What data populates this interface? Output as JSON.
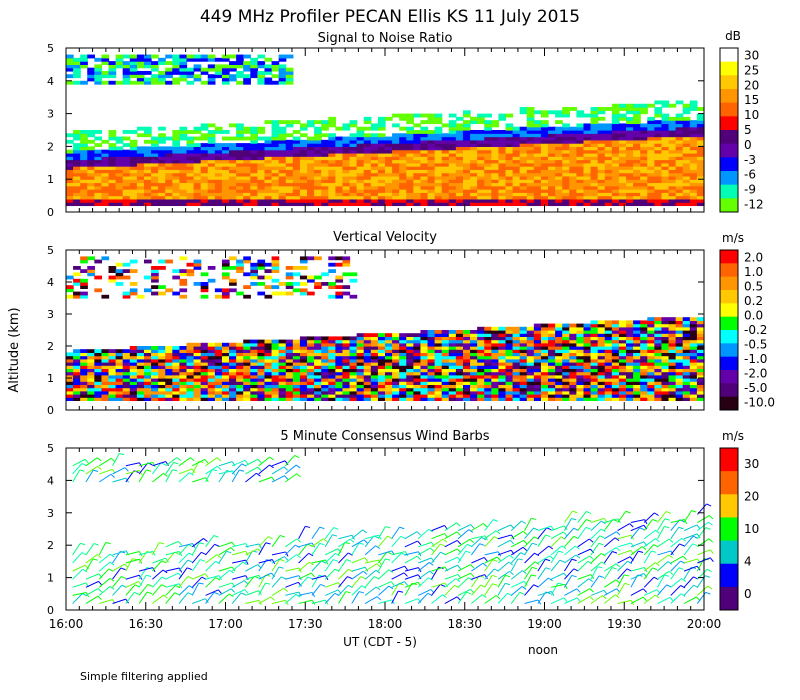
{
  "title": "449 MHz Profiler PECAN Ellis KS 11 July 2015",
  "ylabel": "Altitude (km)",
  "xlabel": "UT  (CDT - 5)",
  "noon_label": "noon",
  "footnote": "Simple filtering applied",
  "chart_data": [
    {
      "type": "heatmap",
      "title": "Signal to Noise Ratio",
      "unit": "dB",
      "ylim": [
        0,
        5
      ],
      "yticks": [
        "0",
        "1",
        "2",
        "3",
        "4",
        "5"
      ],
      "xlim": [
        16.0,
        20.0
      ],
      "xticks": [
        "16:00",
        "16:30",
        "17:00",
        "17:30",
        "18:00",
        "18:30",
        "19:00",
        "19:30",
        "20:00"
      ],
      "colorbar": {
        "labels": [
          "30",
          "25",
          "20",
          "15",
          "10",
          "5",
          "0",
          "-3",
          "-6",
          "-9",
          "-12"
        ],
        "colors": [
          "#ffffff",
          "#ffff00",
          "#ffc800",
          "#ff9600",
          "#ff6400",
          "#ff0000",
          "#500078",
          "#6400aa",
          "#0000ff",
          "#0096ff",
          "#00ffb4",
          "#64ff00"
        ]
      }
    },
    {
      "type": "heatmap",
      "title": "Vertical Velocity",
      "unit": "m/s",
      "ylim": [
        0,
        5
      ],
      "yticks": [
        "0",
        "1",
        "2",
        "3",
        "4",
        "5"
      ],
      "xlim": [
        16.0,
        20.0
      ],
      "colorbar": {
        "labels": [
          "2.0",
          "1.0",
          "0.5",
          "0.2",
          "0.0",
          "-0.2",
          "-0.5",
          "-1.0",
          "-2.0",
          "-5.0",
          "-10.0"
        ],
        "colors": [
          "#ff0000",
          "#ff6400",
          "#ff9600",
          "#ffc800",
          "#ffff00",
          "#00ff00",
          "#00ffff",
          "#0096ff",
          "#0000ff",
          "#6400aa",
          "#500078",
          "#280014"
        ]
      }
    },
    {
      "type": "scatter",
      "title": "5 Minute Consensus Wind Barbs",
      "unit": "m/s",
      "ylim": [
        0,
        5
      ],
      "yticks": [
        "0",
        "1",
        "2",
        "3",
        "4",
        "5"
      ],
      "xlim": [
        16.0,
        20.0
      ],
      "colorbar": {
        "labels": [
          "30",
          "20",
          "10",
          "4",
          "0"
        ],
        "colors": [
          "#ff0000",
          "#ff6400",
          "#ffc800",
          "#00ff00",
          "#00c8c8",
          "#0000ff",
          "#500078"
        ]
      }
    }
  ]
}
